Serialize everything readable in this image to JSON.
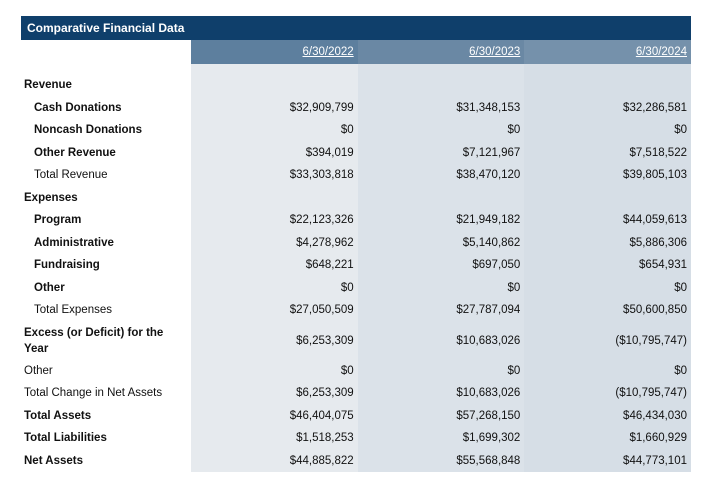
{
  "title": "Comparative Financial Data",
  "years": [
    "6/30/2022",
    "6/30/2023",
    "6/30/2024"
  ],
  "rows": [
    {
      "label": "Revenue",
      "values": [
        "",
        "",
        ""
      ]
    },
    {
      "label": "Cash Donations",
      "values": [
        "$32,909,799",
        "$31,348,153",
        "$32,286,581"
      ]
    },
    {
      "label": "Noncash Donations",
      "values": [
        "$0",
        "$0",
        "$0"
      ]
    },
    {
      "label": "Other Revenue",
      "values": [
        "$394,019",
        "$7,121,967",
        "$7,518,522"
      ]
    },
    {
      "label": "Total Revenue",
      "values": [
        "$33,303,818",
        "$38,470,120",
        "$39,805,103"
      ]
    },
    {
      "label": "Expenses",
      "values": [
        "",
        "",
        ""
      ]
    },
    {
      "label": "Program",
      "values": [
        "$22,123,326",
        "$21,949,182",
        "$44,059,613"
      ]
    },
    {
      "label": "Administrative",
      "values": [
        "$4,278,962",
        "$5,140,862",
        "$5,886,306"
      ]
    },
    {
      "label": "Fundraising",
      "values": [
        "$648,221",
        "$697,050",
        "$654,931"
      ]
    },
    {
      "label": "Other",
      "values": [
        "$0",
        "$0",
        "$0"
      ]
    },
    {
      "label": "Total Expenses",
      "values": [
        "$27,050,509",
        "$27,787,094",
        "$50,600,850"
      ]
    },
    {
      "label": "Excess (or Deficit) for the Year",
      "values": [
        "$6,253,309",
        "$10,683,026",
        "($10,795,747)"
      ]
    },
    {
      "label": "Other",
      "values": [
        "$0",
        "$0",
        "$0"
      ]
    },
    {
      "label": "Total Change in Net Assets",
      "values": [
        "$6,253,309",
        "$10,683,026",
        "($10,795,747)"
      ]
    },
    {
      "label": "Total Assets",
      "values": [
        "$46,404,075",
        "$57,268,150",
        "$46,434,030"
      ]
    },
    {
      "label": "Total Liabilities",
      "values": [
        "$1,518,253",
        "$1,699,302",
        "$1,660,929"
      ]
    },
    {
      "label": "Net Assets",
      "values": [
        "$44,885,822",
        "$55,568,848",
        "$44,773,101"
      ]
    }
  ]
}
